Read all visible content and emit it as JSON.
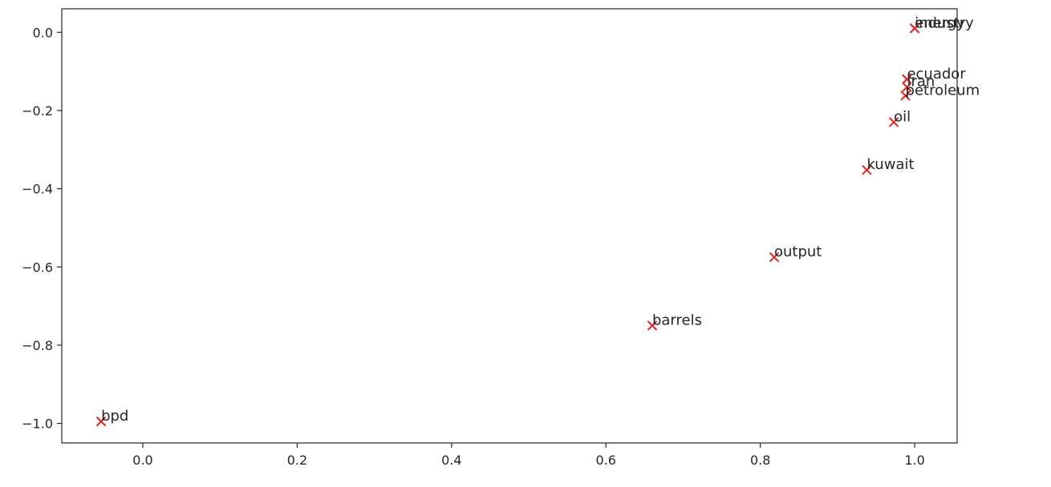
{
  "chart_data": {
    "type": "scatter",
    "title": "",
    "xlabel": "",
    "ylabel": "",
    "xlim": [
      -0.105,
      1.055
    ],
    "ylim": [
      -1.05,
      0.06
    ],
    "xticks": [
      {
        "value": 0.0,
        "label": "0.0"
      },
      {
        "value": 0.2,
        "label": "0.2"
      },
      {
        "value": 0.4,
        "label": "0.4"
      },
      {
        "value": 0.6,
        "label": "0.6"
      },
      {
        "value": 0.8,
        "label": "0.8"
      },
      {
        "value": 1.0,
        "label": "1.0"
      }
    ],
    "yticks": [
      {
        "value": 0.0,
        "label": "0.0"
      },
      {
        "value": -0.2,
        "label": "−0.2"
      },
      {
        "value": -0.4,
        "label": "−0.4"
      },
      {
        "value": -0.6,
        "label": "−0.6"
      },
      {
        "value": -0.8,
        "label": "−0.8"
      },
      {
        "value": -1.0,
        "label": "−1.0"
      }
    ],
    "grid": false,
    "marker": "x",
    "marker_color": "#e8221e",
    "points": [
      {
        "label": "industry",
        "x": 1.0,
        "y": 0.01
      },
      {
        "label": "energy",
        "x": 1.0,
        "y": 0.01
      },
      {
        "label": "ecuador",
        "x": 0.99,
        "y": -0.12
      },
      {
        "label": "iran",
        "x": 0.99,
        "y": -0.14
      },
      {
        "label": "petroleum",
        "x": 0.988,
        "y": -0.162
      },
      {
        "label": "oil",
        "x": 0.973,
        "y": -0.23
      },
      {
        "label": "kuwait",
        "x": 0.938,
        "y": -0.352
      },
      {
        "label": "output",
        "x": 0.818,
        "y": -0.575
      },
      {
        "label": "barrels",
        "x": 0.66,
        "y": -0.75
      },
      {
        "label": "bpd",
        "x": -0.054,
        "y": -0.995
      }
    ]
  }
}
